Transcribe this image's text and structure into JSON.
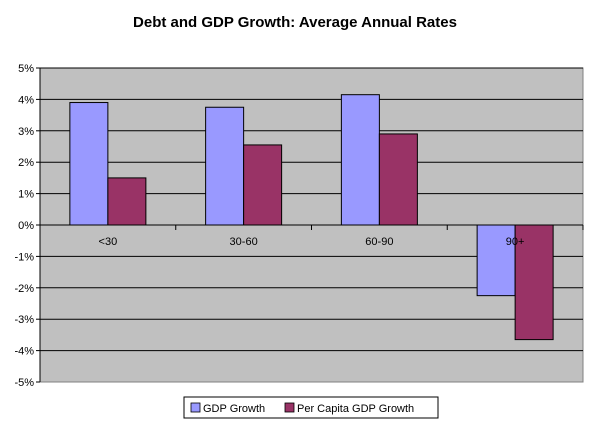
{
  "chart_data": {
    "type": "bar",
    "title": "Debt and GDP Growth: Average Annual Rates",
    "xlabel": "",
    "ylabel": "",
    "categories": [
      "<30",
      "30-60",
      "60-90",
      "90+"
    ],
    "series": [
      {
        "name": "GDP Growth",
        "values": [
          3.9,
          3.75,
          4.15,
          -2.25
        ]
      },
      {
        "name": "Per Capita GDP Growth",
        "values": [
          1.5,
          2.55,
          2.9,
          -3.65
        ]
      }
    ],
    "ylim": [
      -5,
      5
    ],
    "yticks": [
      5,
      4,
      3,
      2,
      1,
      0,
      -1,
      -2,
      -3,
      -4,
      -5
    ],
    "ytick_labels": [
      "5%",
      "4%",
      "3%",
      "2%",
      "1%",
      "0%",
      "-1%",
      "-2%",
      "-3%",
      "-4%",
      "-5%"
    ],
    "grid": true,
    "legend_position": "bottom",
    "colors": {
      "plot_background": "#c0c0c0",
      "series": [
        "#9999ff",
        "#993366"
      ],
      "grid": "#000000"
    }
  }
}
